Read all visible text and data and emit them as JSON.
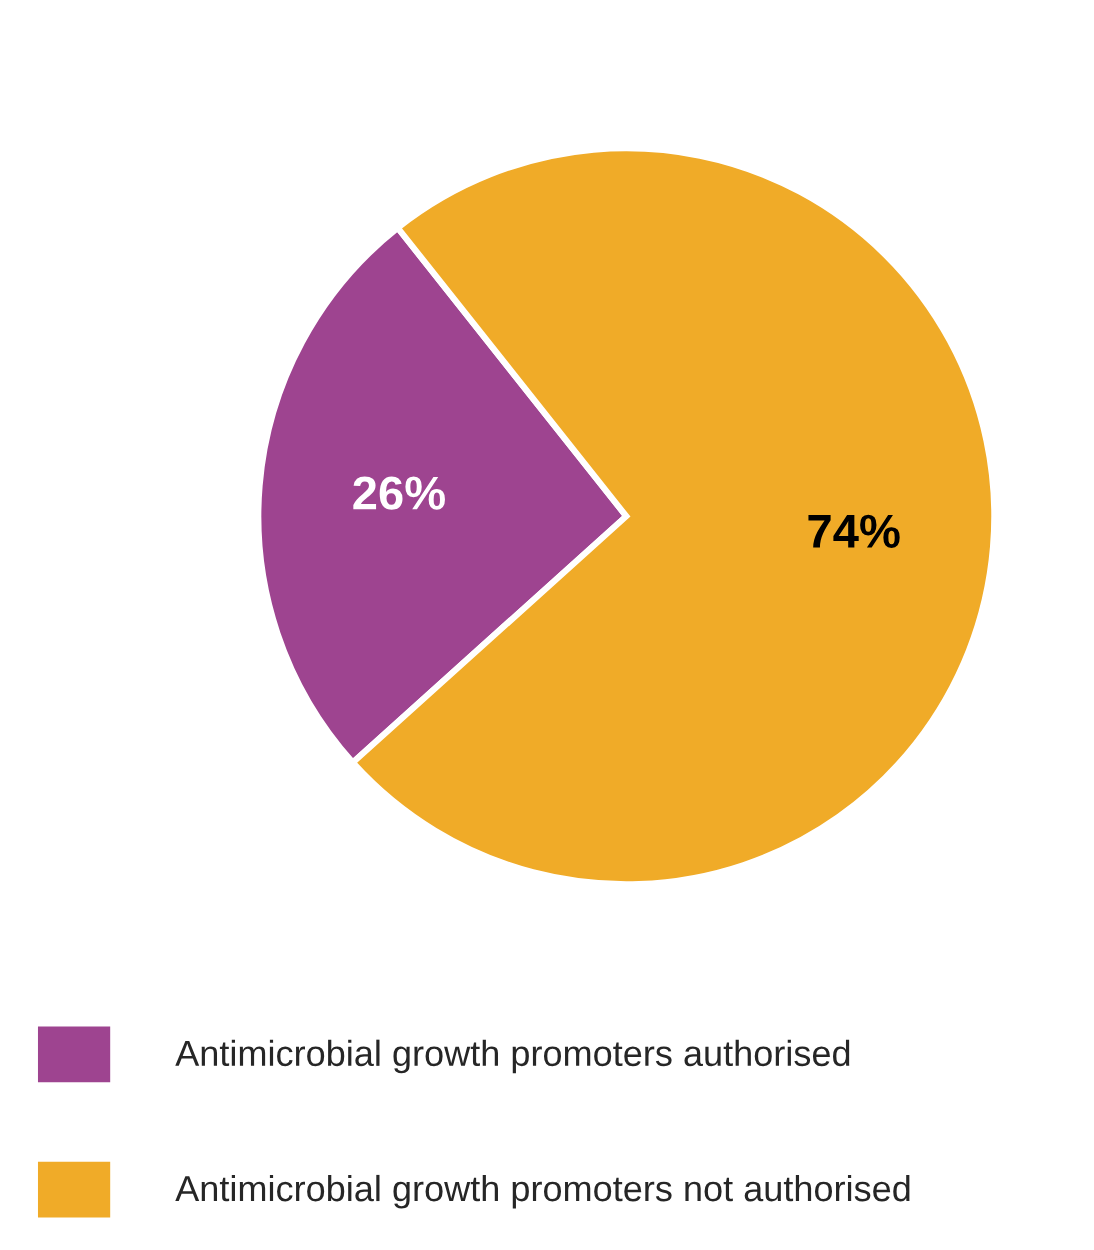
{
  "chart_data": {
    "type": "pie",
    "categories": [
      "Antimicrobial growth promoters authorised",
      "Antimicrobial growth promoters not authorised"
    ],
    "values": [
      26,
      74
    ],
    "colors": [
      "#9e4490",
      "#f0ab28"
    ],
    "value_labels": [
      "26%",
      "74%"
    ],
    "legend": "bottom left"
  }
}
